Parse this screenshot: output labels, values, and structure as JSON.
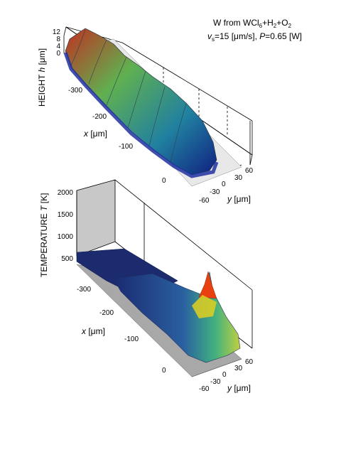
{
  "chart_data": [
    {
      "type": "surface",
      "title": "W from WCl6+H2+O2",
      "annotation_line1": "W from WCl",
      "annotation_sub1": "6",
      "annotation_mid": "+H",
      "annotation_sub2": "2",
      "annotation_end": "+O",
      "annotation_sub3": "2",
      "params_vs_symbol": "v",
      "params_vs_sub": "s",
      "params_vs_value": "=15 [μm/s], ",
      "params_P_symbol": "P",
      "params_P_value": "=0.65 [W]",
      "zlabel_prefix": "HEIGHT ",
      "zlabel_symbol": "h",
      "zlabel_unit": " [μm]",
      "xlabel_symbol": "x",
      "xlabel_unit": " [μm]",
      "ylabel_symbol": "y",
      "ylabel_unit": " [μm]",
      "z_ticks": [
        "0",
        "4",
        "8",
        "12"
      ],
      "x_ticks": [
        "-300",
        "-200",
        "-100",
        "0"
      ],
      "y_ticks": [
        "-60",
        "-30",
        "0",
        "30",
        "60"
      ],
      "xlim": [
        -370,
        0
      ],
      "ylim": [
        -60,
        60
      ],
      "zlim": [
        0,
        12
      ],
      "description_values": {
        "peak_height": 12,
        "num_bumps": 6
      }
    },
    {
      "type": "surface",
      "zlabel_prefix": "TEMPERATURE ",
      "zlabel_symbol": "T",
      "zlabel_unit": " [K]",
      "xlabel_symbol": "x",
      "xlabel_unit": " [μm]",
      "ylabel_symbol": "y",
      "ylabel_unit": " [μm]",
      "z_ticks": [
        "500",
        "1000",
        "1500",
        "2000"
      ],
      "x_ticks": [
        "-300",
        "-200",
        "-100",
        "0"
      ],
      "y_ticks": [
        "-60",
        "-30",
        "0",
        "30",
        "60"
      ],
      "xlim": [
        -370,
        0
      ],
      "ylim": [
        -60,
        60
      ],
      "zlim": [
        500,
        2000
      ],
      "description_values": {
        "peak_temperature": 1600,
        "base_temperature": 500
      }
    }
  ],
  "colors": {
    "surface_low": "#000080",
    "surface_mid": "#00c0c0",
    "surface_high": "#ff0000",
    "back_wall": "#c0c0c0",
    "shadow": "#a0a0a0"
  }
}
